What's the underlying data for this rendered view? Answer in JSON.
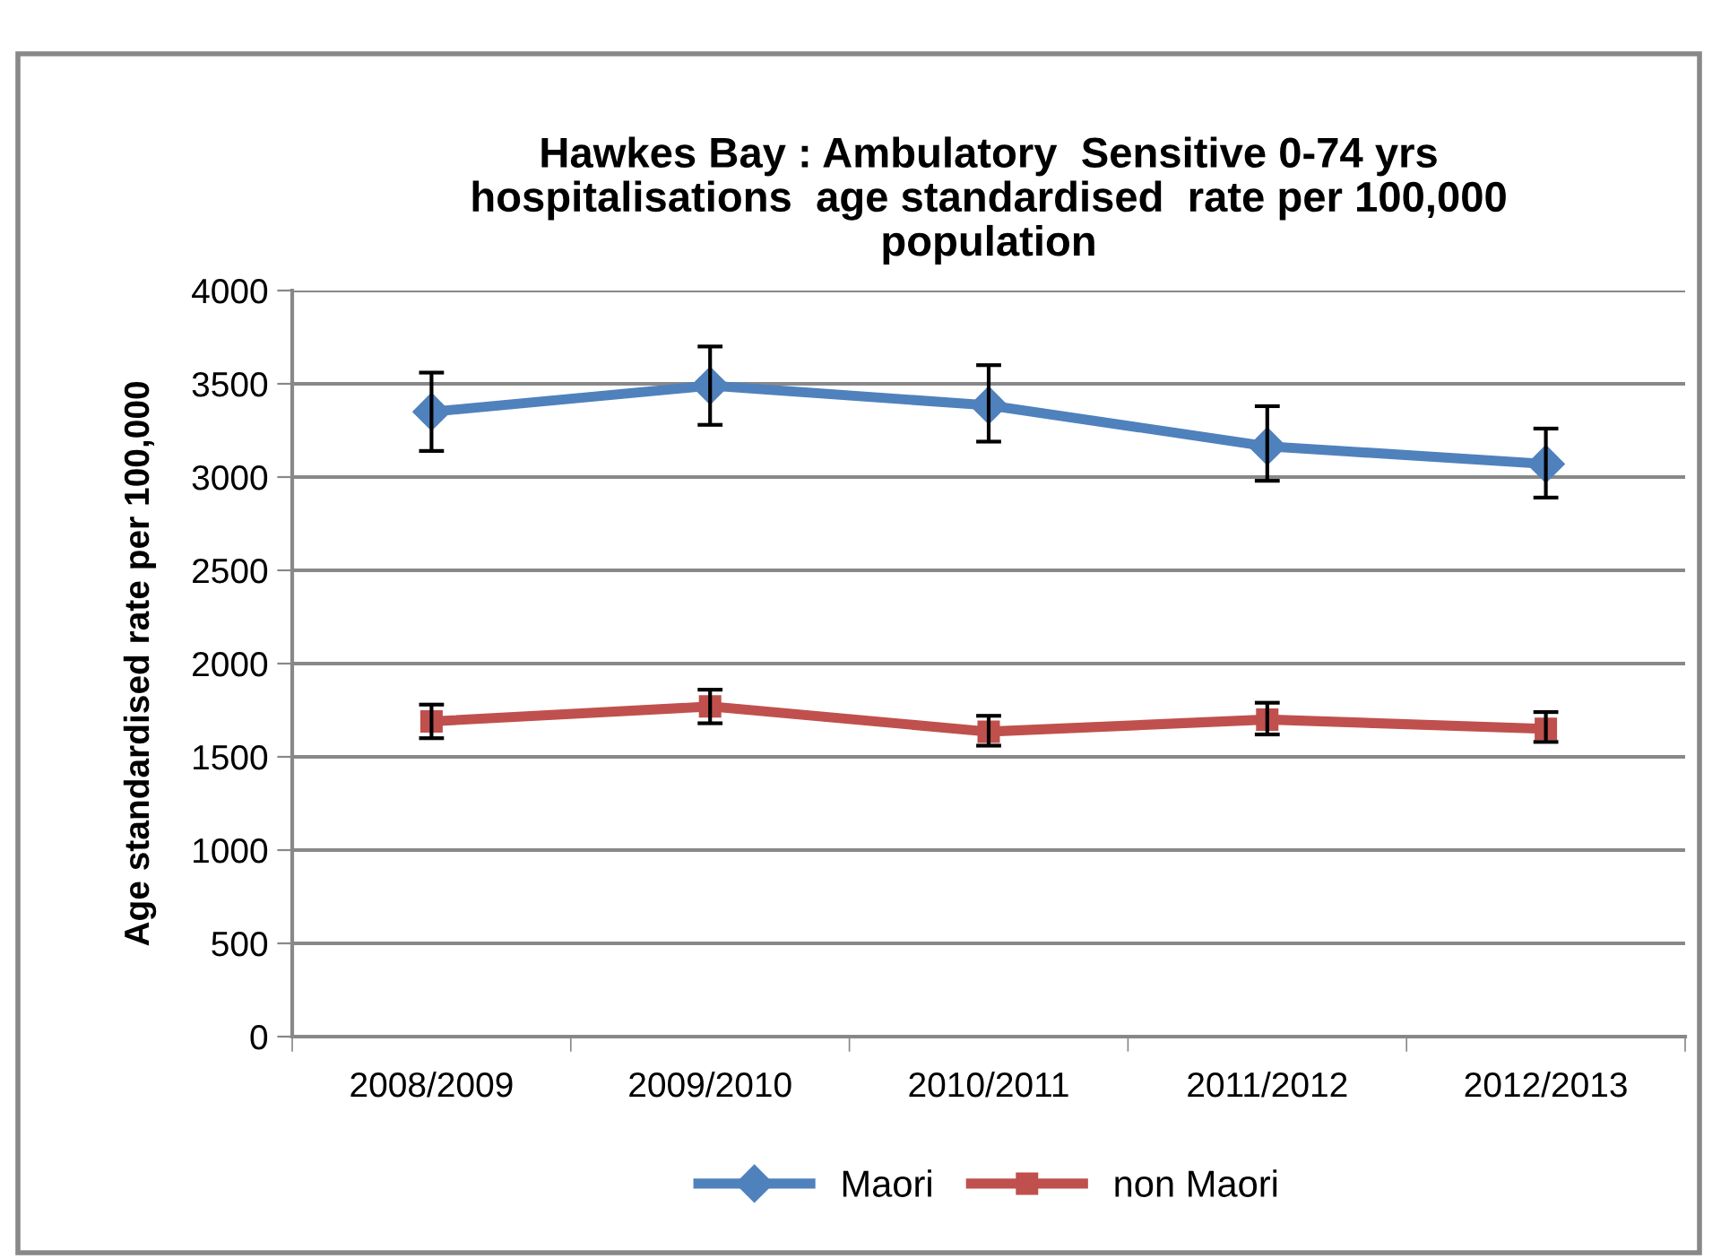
{
  "chart_data": {
    "type": "line",
    "title": "Hawkes Bay : Ambulatory  Sensitive 0-74 yrs\nhospitalisations  age standardised  rate per 100,000\npopulation",
    "ylabel": "Age standardised rate per 100,000",
    "categories": [
      "2008/2009",
      "2009/2010",
      "2010/2011",
      "2011/2012",
      "2012/2013"
    ],
    "series": [
      {
        "name": "Maori",
        "color": "#4f81bd",
        "marker": "diamond",
        "values": [
          3350,
          3490,
          3385,
          3165,
          3070
        ],
        "errors": [
          [
            3140,
            3560
          ],
          [
            3280,
            3700
          ],
          [
            3190,
            3600
          ],
          [
            2980,
            3380
          ],
          [
            2890,
            3260
          ]
        ]
      },
      {
        "name": "non Maori",
        "color": "#c0504d",
        "marker": "square",
        "values": [
          1690,
          1770,
          1635,
          1700,
          1650
        ],
        "errors": [
          [
            1600,
            1780
          ],
          [
            1680,
            1860
          ],
          [
            1560,
            1720
          ],
          [
            1620,
            1790
          ],
          [
            1580,
            1740
          ]
        ]
      }
    ],
    "ylim": [
      0,
      4000
    ],
    "yticks": [
      0,
      500,
      1000,
      1500,
      2000,
      2500,
      3000,
      3500,
      4000
    ],
    "grid": "y",
    "legend": "bottom",
    "line_style": "solid"
  }
}
